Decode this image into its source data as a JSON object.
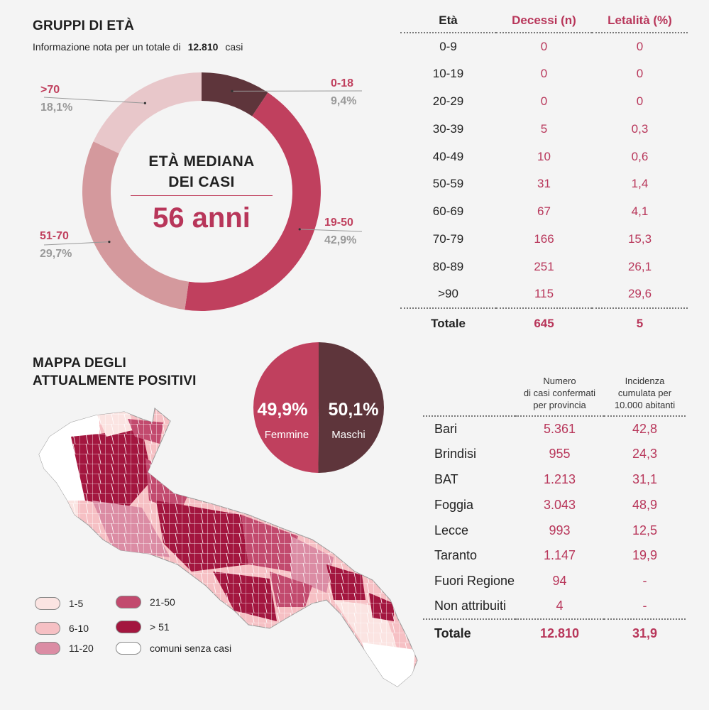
{
  "age_section": {
    "title": "GRUPPI DI ETÀ",
    "subtitle_prefix": "Informazione nota per un totale di",
    "subtitle_value": "12.810",
    "subtitle_suffix": "casi",
    "center_title_line1": "ETÀ MEDIANA",
    "center_title_line2": "DEI CASI",
    "center_value": "56 anni"
  },
  "chart_data": [
    {
      "type": "pie",
      "title": "GRUPPI DI ETÀ",
      "categories": [
        "0-18",
        "19-50",
        "51-70",
        ">70"
      ],
      "values": [
        9.4,
        42.9,
        29.7,
        18.1
      ],
      "labels": [
        "9,4%",
        "42,9%",
        "29,7%",
        "18,1%"
      ],
      "colors": [
        "#5e353b",
        "#c0405e",
        "#d4999d",
        "#e8c7ca"
      ]
    },
    {
      "type": "pie",
      "categories": [
        "Femmine",
        "Maschi"
      ],
      "values": [
        49.9,
        50.1
      ],
      "labels": [
        "49,9%",
        "50,1%"
      ],
      "colors": [
        "#c0405e",
        "#5e353b"
      ]
    },
    {
      "type": "table",
      "headers": [
        "Età",
        "Decessi (n)",
        "Letalità (%)"
      ],
      "rows": [
        [
          "0-9",
          "0",
          "0"
        ],
        [
          "10-19",
          "0",
          "0"
        ],
        [
          "20-29",
          "0",
          "0"
        ],
        [
          "30-39",
          "5",
          "0,3"
        ],
        [
          "40-49",
          "10",
          "0,6"
        ],
        [
          "50-59",
          "31",
          "1,4"
        ],
        [
          "60-69",
          "67",
          "4,1"
        ],
        [
          "70-79",
          "166",
          "15,3"
        ],
        [
          "80-89",
          "251",
          "26,1"
        ],
        [
          ">90",
          "115",
          "29,6"
        ]
      ],
      "total": [
        "Totale",
        "645",
        "5"
      ]
    },
    {
      "type": "table",
      "headers": [
        "",
        "Numero di casi confermati per provincia",
        "Incidenza cumulata per 10.000 abitanti"
      ],
      "rows": [
        [
          "Bari",
          "5.361",
          "42,8"
        ],
        [
          "Brindisi",
          "955",
          "24,3"
        ],
        [
          "BAT",
          "1.213",
          "31,1"
        ],
        [
          "Foggia",
          "3.043",
          "48,9"
        ],
        [
          "Lecce",
          "993",
          "12,5"
        ],
        [
          "Taranto",
          "1.147",
          "19,9"
        ],
        [
          "Fuori Regione",
          "94",
          "-"
        ],
        [
          "Non attribuiti",
          "4",
          "-"
        ]
      ],
      "total": [
        "Totale",
        "12.810",
        "31,9"
      ]
    }
  ],
  "age_table_headers": {
    "age": "Età",
    "deaths": "Decessi (n)",
    "lethality": "Letalità (%)"
  },
  "map_section": {
    "title_line1": "MAPPA DEGLI",
    "title_line2": "ATTUALMENTE POSITIVI",
    "legend": [
      {
        "label": "1-5",
        "color": "#fbe4e2"
      },
      {
        "label": "6-10",
        "color": "#f6c0c4"
      },
      {
        "label": "11-20",
        "color": "#db8ca4"
      },
      {
        "label": "21-50",
        "color": "#c24a6e"
      },
      {
        "label": "> 51",
        "color": "#a3163f"
      },
      {
        "label": "comuni senza casi",
        "color": "#ffffff"
      }
    ]
  },
  "province_headers": {
    "cases_line1": "Numero",
    "cases_line2": "di casi confermati",
    "cases_line3": "per provincia",
    "inc_line1": "Incidenza",
    "inc_line2": "cumulata per",
    "inc_line3": "10.000 abitanti"
  }
}
